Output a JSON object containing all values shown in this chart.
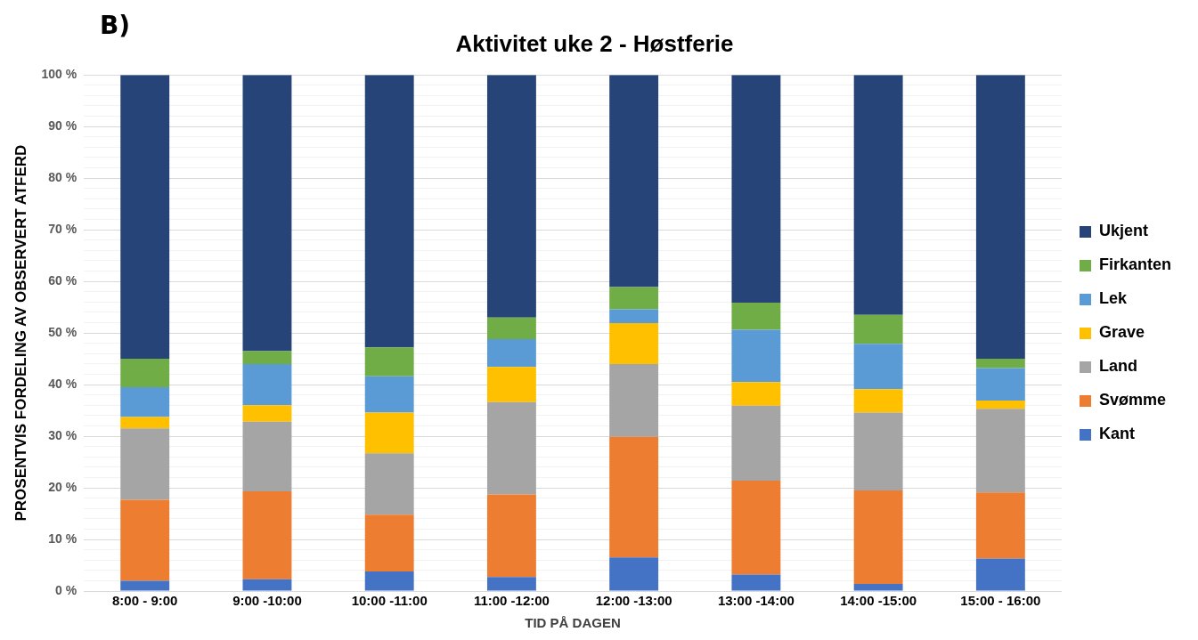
{
  "chart_data": {
    "type": "bar",
    "stacked": true,
    "title": "Aktivitet uke 2 - Høstferie",
    "xlabel": "TID PÅ DAGEN",
    "ylabel": "PROSENTVIS FORDELING AV OBSERVERT ATFERD",
    "annotations": [
      "B)"
    ],
    "categories": [
      "8:00 - 9:00",
      "9:00 -10:00",
      "10:00 -11:00",
      "11:00 -12:00",
      "12:00 -13:00",
      "13:00 -14:00",
      "14:00 -15:00",
      "15:00 - 16:00"
    ],
    "series": [
      {
        "name": "Kant",
        "color": "#4472c4",
        "values": [
          2.0,
          2.3,
          3.8,
          2.7,
          6.5,
          3.2,
          1.4,
          6.3
        ]
      },
      {
        "name": "Svømme",
        "color": "#ed7d31",
        "values": [
          15.7,
          17.0,
          11.0,
          16.0,
          23.4,
          18.2,
          18.1,
          12.8
        ]
      },
      {
        "name": "Land",
        "color": "#a5a5a5",
        "values": [
          13.8,
          13.5,
          11.9,
          17.9,
          14.1,
          14.5,
          15.1,
          16.2
        ]
      },
      {
        "name": "Grave",
        "color": "#ffc000",
        "values": [
          2.2,
          3.2,
          7.9,
          6.8,
          7.9,
          4.6,
          4.5,
          1.6
        ]
      },
      {
        "name": "Lek",
        "color": "#5b9bd5",
        "values": [
          5.8,
          8.0,
          7.0,
          5.4,
          2.7,
          10.1,
          8.8,
          6.3
        ]
      },
      {
        "name": "Firkanten",
        "color": "#70ad47",
        "values": [
          5.5,
          2.5,
          5.6,
          4.2,
          4.3,
          5.3,
          5.6,
          1.8
        ]
      },
      {
        "name": "Ukjent",
        "color": "#264478",
        "values": [
          55.0,
          53.5,
          52.8,
          47.0,
          41.1,
          44.1,
          46.5,
          55.0
        ]
      }
    ],
    "ylim": [
      0,
      100
    ],
    "yticks": [
      {
        "value": 0,
        "label": "0 %"
      },
      {
        "value": 2,
        "label": null
      },
      {
        "value": 4,
        "label": null
      },
      {
        "value": 6,
        "label": null
      },
      {
        "value": 8,
        "label": null
      },
      {
        "value": 10,
        "label": "10 %"
      },
      {
        "value": 12,
        "label": null
      },
      {
        "value": 14,
        "label": null
      },
      {
        "value": 16,
        "label": null
      },
      {
        "value": 18,
        "label": null
      },
      {
        "value": 20,
        "label": "20 %"
      },
      {
        "value": 22,
        "label": null
      },
      {
        "value": 24,
        "label": null
      },
      {
        "value": 26,
        "label": null
      },
      {
        "value": 28,
        "label": null
      },
      {
        "value": 30,
        "label": "30 %"
      },
      {
        "value": 32,
        "label": null
      },
      {
        "value": 34,
        "label": null
      },
      {
        "value": 36,
        "label": null
      },
      {
        "value": 38,
        "label": null
      },
      {
        "value": 40,
        "label": "40 %"
      },
      {
        "value": 42,
        "label": null
      },
      {
        "value": 44,
        "label": null
      },
      {
        "value": 46,
        "label": null
      },
      {
        "value": 48,
        "label": null
      },
      {
        "value": 50,
        "label": "50 %"
      },
      {
        "value": 52,
        "label": null
      },
      {
        "value": 54,
        "label": null
      },
      {
        "value": 56,
        "label": null
      },
      {
        "value": 58,
        "label": null
      },
      {
        "value": 60,
        "label": "60 %"
      },
      {
        "value": 62,
        "label": null
      },
      {
        "value": 64,
        "label": null
      },
      {
        "value": 66,
        "label": null
      },
      {
        "value": 68,
        "label": null
      },
      {
        "value": 70,
        "label": "70 %"
      },
      {
        "value": 72,
        "label": null
      },
      {
        "value": 74,
        "label": null
      },
      {
        "value": 76,
        "label": null
      },
      {
        "value": 78,
        "label": null
      },
      {
        "value": 80,
        "label": "80 %"
      },
      {
        "value": 82,
        "label": null
      },
      {
        "value": 84,
        "label": null
      },
      {
        "value": 86,
        "label": null
      },
      {
        "value": 88,
        "label": null
      },
      {
        "value": 90,
        "label": "90 %"
      },
      {
        "value": 92,
        "label": null
      },
      {
        "value": 94,
        "label": null
      },
      {
        "value": 96,
        "label": null
      },
      {
        "value": 98,
        "label": null
      },
      {
        "value": 100,
        "label": "100 %"
      }
    ],
    "grid": "y",
    "legend": "right"
  }
}
